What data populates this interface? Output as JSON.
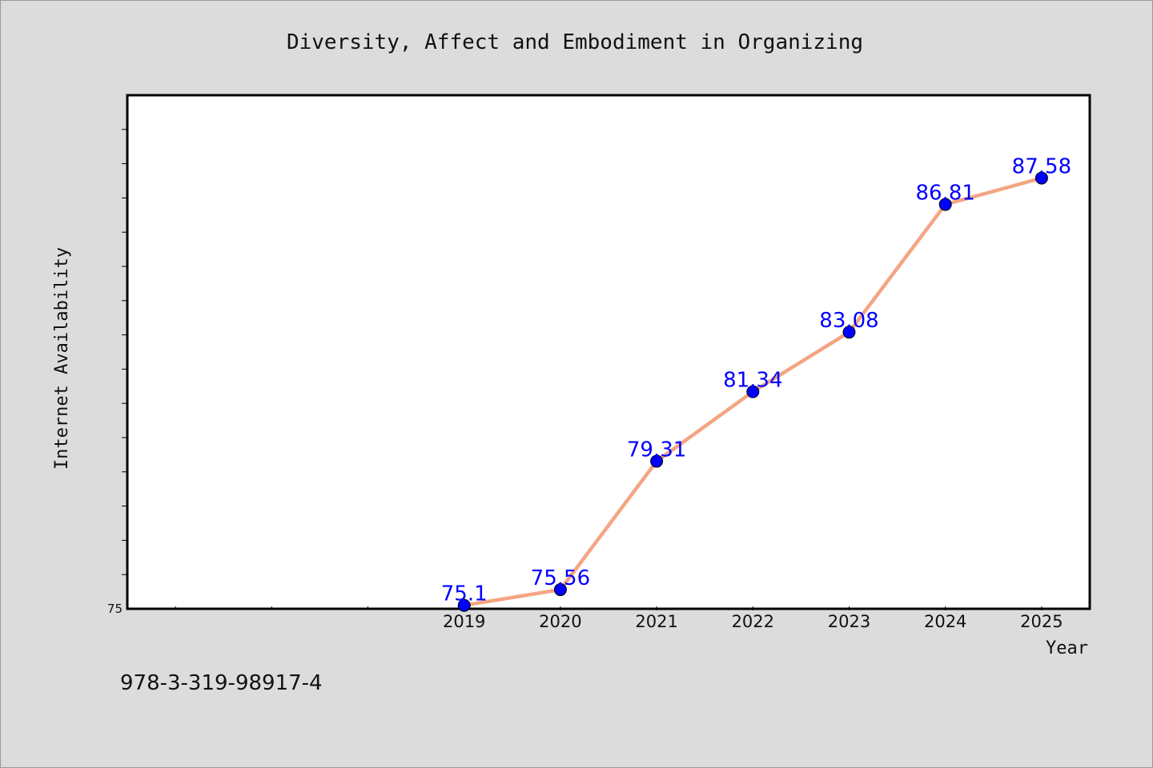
{
  "chart_data": {
    "type": "line",
    "title": "Diversity, Affect and Embodiment in Organizing",
    "xlabel": "Year",
    "ylabel": "Internet Availability",
    "x": [
      2019,
      2020,
      2021,
      2022,
      2023,
      2024,
      2025
    ],
    "series": [
      {
        "values": [
          75.1,
          75.56,
          79.31,
          81.34,
          83.08,
          86.81,
          87.58
        ]
      }
    ],
    "data_labels": [
      "75.1",
      "75.56",
      "79.31",
      "81.34",
      "83.08",
      "86.81",
      "87.58"
    ],
    "xlim": [
      2015.5,
      2025.5
    ],
    "ylim": [
      75,
      90
    ],
    "y_tick_labels": [
      "75"
    ],
    "grid": false,
    "legend": "none",
    "colors": {
      "line": "#f4a582",
      "marker": "#0000ff",
      "label": "#0000ff"
    }
  },
  "footer": {
    "code": "978-3-319-98917-4"
  }
}
